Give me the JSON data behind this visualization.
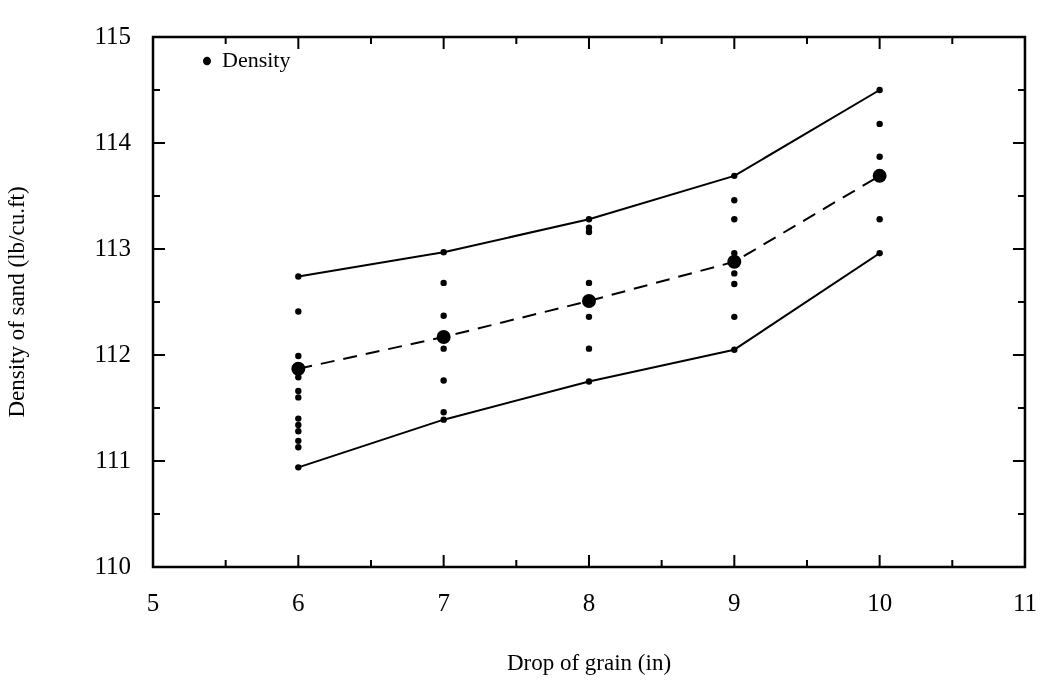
{
  "chart_data": {
    "type": "scatter",
    "xlabel": "Drop of grain (in)",
    "ylabel": "Density of sand (lb/cu.ft)",
    "xlim": [
      5,
      11
    ],
    "xticks": [
      5,
      {
        "value": 5.5,
        "label": null
      },
      6,
      {
        "value": 6.5,
        "label": null
      },
      7,
      {
        "value": 7.5,
        "label": null
      },
      8,
      {
        "value": 8.5,
        "label": null
      },
      9,
      {
        "value": 9.5,
        "label": null
      },
      10,
      {
        "value": 10.5,
        "label": null
      },
      11
    ],
    "ylim": [
      110,
      115
    ],
    "yticks": [
      110,
      {
        "value": 110.5,
        "label": null
      },
      111,
      {
        "value": 111.5,
        "label": null
      },
      112,
      {
        "value": 112.5,
        "label": null
      },
      113,
      {
        "value": 113.5,
        "label": null
      },
      114,
      {
        "value": 114.5,
        "label": null
      },
      115
    ],
    "grid": false,
    "legend": "top left",
    "marker": "circle",
    "series": [
      {
        "name": "Density",
        "color": "#000000",
        "x": [
          6,
          6,
          6,
          6,
          6,
          6,
          6,
          6,
          6,
          6,
          6,
          6,
          7,
          7,
          7,
          7,
          7,
          7,
          7,
          8,
          8,
          8,
          8,
          8,
          8,
          8,
          9,
          9,
          9,
          9,
          9,
          9,
          9,
          9,
          10,
          10,
          10,
          10,
          10
        ],
        "values": [
          112.74,
          112.41,
          111.99,
          111.79,
          111.66,
          111.6,
          111.4,
          111.34,
          111.28,
          111.19,
          111.13,
          110.94,
          112.97,
          112.68,
          112.37,
          112.06,
          111.76,
          111.46,
          111.39,
          113.28,
          113.2,
          113.16,
          112.68,
          112.36,
          112.06,
          111.75,
          113.69,
          113.46,
          113.28,
          112.96,
          112.77,
          112.67,
          112.36,
          112.05,
          114.5,
          114.18,
          113.87,
          113.28,
          112.96
        ]
      },
      {
        "type": "line",
        "color": "#000000",
        "line_style": "solid",
        "marker": "none",
        "x": [
          6,
          7,
          8,
          9,
          10
        ],
        "values": [
          112.74,
          112.97,
          113.28,
          113.69,
          114.5
        ]
      },
      {
        "type": "line",
        "color": "#000000",
        "line_style": "dashed",
        "marker": "circle",
        "x": [
          6,
          7,
          8,
          9,
          10
        ],
        "values": [
          111.87,
          112.17,
          112.51,
          112.88,
          113.69
        ]
      },
      {
        "type": "line",
        "color": "#000000",
        "line_style": "solid",
        "marker": "none",
        "x": [
          6,
          7,
          8,
          9,
          10
        ],
        "values": [
          110.94,
          111.39,
          111.75,
          112.05,
          112.96
        ]
      }
    ]
  }
}
